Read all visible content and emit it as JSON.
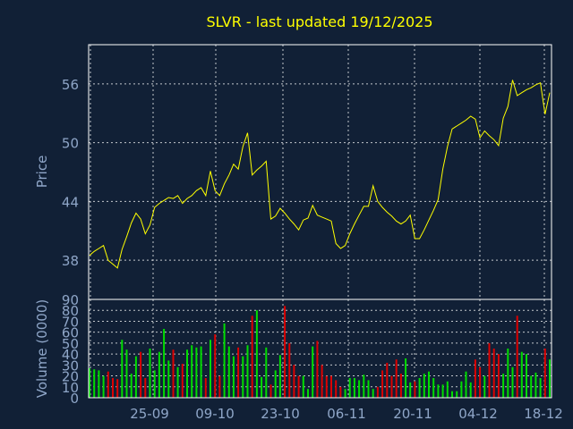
{
  "title": "SLVR - last updated 19/12/2025",
  "colors": {
    "background": "#112036",
    "price_line": "#ffff00",
    "volume_up": "#00dd00",
    "volume_down": "#dd0000",
    "text": "#8fa6c8",
    "title": "#ffff00",
    "grid": "#ffffff"
  },
  "chart_data": [
    {
      "type": "line",
      "ylabel": "Price",
      "ylim": [
        34,
        60
      ],
      "yticks": [
        38,
        44,
        50,
        56
      ],
      "grid": true,
      "series": [
        {
          "values": [
            38.5,
            38.9,
            39.2,
            39.5,
            38.0,
            37.6,
            37.2,
            39.1,
            40.4,
            41.8,
            42.8,
            42.2,
            40.7,
            41.6,
            43.4,
            43.8,
            44.1,
            44.4,
            44.3,
            44.6,
            43.8,
            44.3,
            44.6,
            45.1,
            45.4,
            44.6,
            47.1,
            45.1,
            44.6,
            45.8,
            46.7,
            47.8,
            47.3,
            49.6,
            51.0,
            46.7,
            47.2,
            47.6,
            48.1,
            42.2,
            42.5,
            43.3,
            42.8,
            42.2,
            41.7,
            41.1,
            42.1,
            42.3,
            43.6,
            42.6,
            42.4,
            42.2,
            42.0,
            39.7,
            39.2,
            39.5,
            40.7,
            41.7,
            42.6,
            43.5,
            43.5,
            45.6,
            44.0,
            43.4,
            42.9,
            42.5,
            42.0,
            41.7,
            42.0,
            42.6,
            40.2,
            40.2,
            41.1,
            42.1,
            43.1,
            44.2,
            47.3,
            49.6,
            51.4,
            51.7,
            52.0,
            52.3,
            52.7,
            52.4,
            50.5,
            51.2,
            50.7,
            50.3,
            49.7,
            52.5,
            53.7,
            56.4,
            54.8,
            55.1,
            55.4,
            55.6,
            55.9,
            56.1,
            52.9,
            55.1
          ]
        }
      ]
    },
    {
      "type": "bar",
      "ylabel": "Volume (0000)",
      "ylim": [
        0,
        90
      ],
      "yticks": [
        0,
        10,
        20,
        30,
        40,
        50,
        60,
        70,
        80,
        90
      ],
      "grid": true,
      "values": [
        27,
        26,
        25,
        20,
        24,
        18,
        17,
        53,
        44,
        22,
        38,
        42,
        18,
        45,
        25,
        42,
        63,
        34,
        44,
        28,
        31,
        44,
        48,
        46,
        47,
        18,
        53,
        58,
        20,
        68,
        47,
        38,
        46,
        38,
        48,
        75,
        80,
        19,
        46,
        12,
        25,
        39,
        84,
        50,
        30,
        20,
        20,
        8,
        47,
        52,
        30,
        20,
        20,
        16,
        10,
        8,
        18,
        18,
        16,
        21,
        16,
        8,
        10,
        25,
        32,
        20,
        35,
        22,
        36,
        14,
        15,
        18,
        22,
        24,
        18,
        12,
        12,
        15,
        6,
        6,
        15,
        24,
        14,
        35,
        28,
        20,
        50,
        45,
        40,
        22,
        45,
        28,
        75,
        42,
        40,
        20,
        23,
        18,
        45,
        35
      ],
      "x_tick_labels": [
        "25-09",
        "09-10",
        "23-10",
        "06-11",
        "20-11",
        "04-12",
        "18-12"
      ]
    }
  ]
}
